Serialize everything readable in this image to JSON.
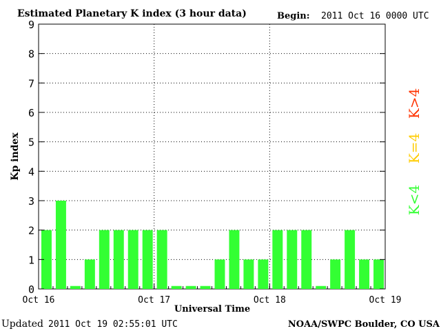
{
  "header": {
    "title": "Estimated Planetary K index (3 hour data)",
    "begin_label": "Begin:",
    "begin_value": "2011 Oct 16 0000 UTC"
  },
  "footer": {
    "updated_label": "Updated",
    "updated_value": "2011 Oct 19 02:55:01 UTC",
    "source": "NOAA/SWPC Boulder, CO USA"
  },
  "legend": {
    "items": [
      {
        "label": "K>4",
        "color": "#ff3300"
      },
      {
        "label": "K=4",
        "color": "#ffcc00"
      },
      {
        "label": "K<4",
        "color": "#33ff33"
      }
    ]
  },
  "chart_data": {
    "type": "bar",
    "title": "Estimated Planetary K index (3 hour data)",
    "xlabel": "Universal Time",
    "ylabel": "Kp index",
    "ylim": [
      0,
      9
    ],
    "yticks": [
      "0",
      "1",
      "2",
      "3",
      "4",
      "5",
      "6",
      "7",
      "8",
      "9"
    ],
    "xticks": [
      "Oct 16",
      "Oct 17",
      "Oct 18",
      "Oct 19"
    ],
    "grid": true,
    "bar_color": "#33ff33",
    "values": [
      2,
      3,
      0.1,
      1,
      2,
      2,
      2,
      2,
      2,
      0.1,
      0.1,
      0.1,
      1,
      2,
      1,
      1,
      2,
      2,
      2,
      0.1,
      1,
      2,
      1,
      1
    ]
  }
}
